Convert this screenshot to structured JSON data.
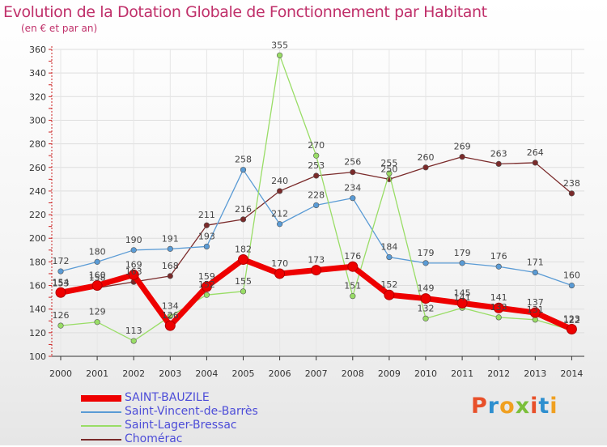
{
  "title": "Evolution de la Dotation Globale de Fonctionnement par Habitant",
  "subtitle": "(en € et par an)",
  "brand": {
    "text": "Proxiti",
    "colors": [
      "#e8502a",
      "#2e8fcf",
      "#f0a020",
      "#7bbf3a"
    ]
  },
  "chart_data": {
    "type": "line",
    "title": "Evolution de la Dotation Globale de Fonctionnement par Habitant",
    "ylabel": "(en € et par an)",
    "xlabel": "",
    "ylim": [
      100,
      360
    ],
    "yticks": [
      100,
      120,
      140,
      160,
      180,
      200,
      220,
      240,
      260,
      280,
      300,
      320,
      340,
      360
    ],
    "grid": true,
    "categories": [
      "2000",
      "2001",
      "2002",
      "2003",
      "2004",
      "2005",
      "2006",
      "2007",
      "2008",
      "2009",
      "2010",
      "2011",
      "2012",
      "2013",
      "2014"
    ],
    "series": [
      {
        "name": "SAINT-BAUZILE",
        "color": "#ee0000",
        "values": [
          154,
          160,
          169,
          126,
          159,
          182,
          170,
          173,
          176,
          152,
          149,
          145,
          141,
          137,
          123
        ]
      },
      {
        "name": "Saint-Vincent-de-Barrès",
        "color": "#5a9bd5",
        "values": [
          172,
          180,
          190,
          191,
          193,
          258,
          212,
          228,
          234,
          184,
          179,
          179,
          176,
          171,
          160
        ]
      },
      {
        "name": "Saint-Lager-Bressac",
        "color": "#99dd66",
        "values": [
          126,
          129,
          113,
          134,
          152,
          155,
          355,
          270,
          151,
          255,
          132,
          141,
          133,
          131,
          122
        ]
      },
      {
        "name": "Chomérac",
        "color": "#7a2a2a",
        "values": [
          153,
          158,
          163,
          168,
          211,
          216,
          240,
          253,
          256,
          250,
          260,
          269,
          263,
          264,
          238
        ]
      }
    ]
  }
}
